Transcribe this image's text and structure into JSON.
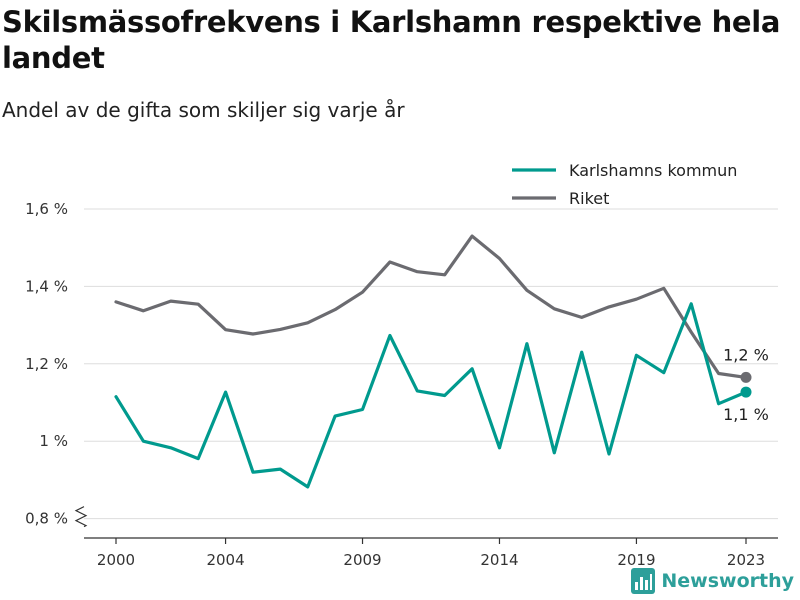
{
  "header": {
    "title": "Skilsmässofrekvens i Karlshamn respektive hela landet",
    "subtitle": "Andel av de gifta som skiljer sig varje år"
  },
  "branding": {
    "logo_text": "Newsworthy",
    "logo_icon": "bar-chart-icon"
  },
  "colors": {
    "karlshamn": "#009a8e",
    "riket": "#6b6b70",
    "grid": "#dddddd",
    "axis": "#333333"
  },
  "chart_data": {
    "type": "line",
    "title": "Skilsmässofrekvens i Karlshamn respektive hela landet",
    "subtitle": "Andel av de gifta som skiljer sig varje år",
    "x": [
      2000,
      2001,
      2002,
      2003,
      2004,
      2005,
      2006,
      2007,
      2008,
      2009,
      2010,
      2011,
      2012,
      2013,
      2014,
      2015,
      2016,
      2017,
      2018,
      2019,
      2020,
      2021,
      2022,
      2023
    ],
    "x_ticks": [
      2000,
      2004,
      2009,
      2014,
      2019,
      2023
    ],
    "x_tick_labels": [
      "2000",
      "2004",
      "2009",
      "2014",
      "2019",
      "2023"
    ],
    "y_ticks": [
      0.8,
      1.0,
      1.2,
      1.4,
      1.6
    ],
    "y_tick_labels": [
      "0,8 %",
      "1 %",
      "1,2 %",
      "1,4 %",
      "1,6 %"
    ],
    "ylim": [
      0.75,
      1.68
    ],
    "y_axis_break": true,
    "grid": true,
    "legend_position": "top-right",
    "series": [
      {
        "name": "Karlshamns kommun",
        "color": "#009a8e",
        "values": [
          1.115,
          1.0,
          0.983,
          0.955,
          1.127,
          0.92,
          0.928,
          0.882,
          1.065,
          1.082,
          1.273,
          1.13,
          1.118,
          1.187,
          0.983,
          1.252,
          0.97,
          1.23,
          0.967,
          1.222,
          1.177,
          1.355,
          1.097,
          1.127
        ],
        "end_label": "1,1 %"
      },
      {
        "name": "Riket",
        "color": "#6b6b70",
        "values": [
          1.36,
          1.337,
          1.362,
          1.354,
          1.288,
          1.277,
          1.289,
          1.306,
          1.34,
          1.385,
          1.463,
          1.438,
          1.43,
          1.53,
          1.472,
          1.39,
          1.342,
          1.32,
          1.347,
          1.367,
          1.395,
          1.282,
          1.175,
          1.165
        ],
        "end_label": "1,2 %"
      }
    ]
  }
}
